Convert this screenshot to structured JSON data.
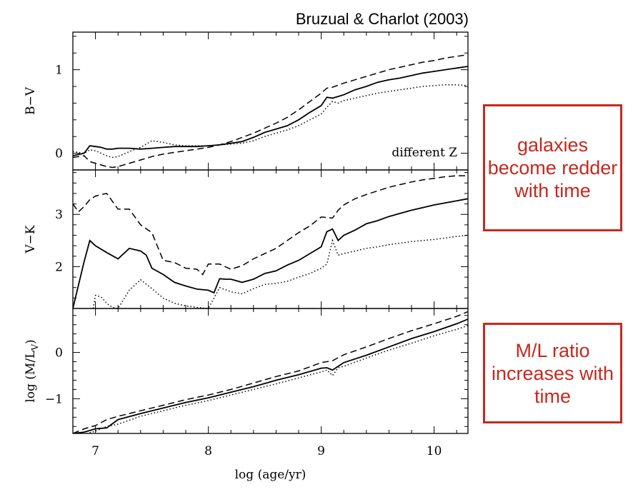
{
  "figure": {
    "title": "Bruzual & Charlot (2003)",
    "xlabel": "log (age/yr)",
    "panel_annotation": "different Z",
    "colors": {
      "lines": "#000000",
      "note_border": "#c8281e",
      "note_text": "#c8281e"
    }
  },
  "notes": [
    {
      "text": "galaxies become redder with time"
    },
    {
      "text": "M/L ratio increases with time"
    }
  ],
  "chart_data": [
    {
      "type": "line",
      "ylabel": "B−V",
      "xlim": [
        6.8,
        10.3
      ],
      "ylim": [
        -0.2,
        1.45
      ],
      "xticks": [
        "7",
        "8",
        "9",
        "10"
      ],
      "yticks": [
        "0",
        "1"
      ],
      "annotation": "different Z",
      "series": [
        {
          "style": "solid",
          "x": [
            6.8,
            6.9,
            6.95,
            7.0,
            7.05,
            7.1,
            7.15,
            7.2,
            7.3,
            7.4,
            7.5,
            7.6,
            7.7,
            7.8,
            7.9,
            8.0,
            8.1,
            8.2,
            8.3,
            8.4,
            8.5,
            8.6,
            8.7,
            8.8,
            8.9,
            9.0,
            9.05,
            9.1,
            9.15,
            9.2,
            9.3,
            9.4,
            9.5,
            9.6,
            9.7,
            9.8,
            9.9,
            10.0,
            10.1,
            10.2,
            10.3
          ],
          "y": [
            -0.03,
            0.0,
            0.09,
            0.08,
            0.07,
            0.05,
            0.05,
            0.06,
            0.06,
            0.05,
            0.06,
            0.07,
            0.08,
            0.08,
            0.08,
            0.09,
            0.1,
            0.12,
            0.14,
            0.19,
            0.25,
            0.29,
            0.33,
            0.4,
            0.49,
            0.57,
            0.67,
            0.66,
            0.68,
            0.7,
            0.76,
            0.8,
            0.85,
            0.88,
            0.9,
            0.93,
            0.96,
            0.98,
            1.0,
            1.02,
            1.04
          ]
        },
        {
          "style": "dashed",
          "x": [
            6.8,
            6.9,
            6.95,
            7.0,
            7.05,
            7.1,
            7.15,
            7.2,
            7.3,
            7.4,
            7.5,
            7.6,
            7.7,
            7.8,
            7.9,
            8.0,
            8.1,
            8.2,
            8.3,
            8.4,
            8.5,
            8.6,
            8.7,
            8.8,
            8.9,
            9.0,
            9.05,
            9.1,
            9.2,
            9.3,
            9.4,
            9.5,
            9.6,
            9.7,
            9.8,
            9.9,
            10.0,
            10.1,
            10.2,
            10.3
          ],
          "y": [
            -0.05,
            -0.03,
            -0.1,
            -0.12,
            -0.14,
            -0.16,
            -0.17,
            -0.16,
            -0.12,
            -0.08,
            -0.04,
            -0.01,
            0.01,
            0.03,
            0.05,
            0.07,
            0.1,
            0.14,
            0.19,
            0.24,
            0.3,
            0.36,
            0.43,
            0.52,
            0.62,
            0.72,
            0.78,
            0.79,
            0.84,
            0.88,
            0.92,
            0.96,
            1.0,
            1.03,
            1.06,
            1.09,
            1.11,
            1.14,
            1.16,
            1.18
          ]
        },
        {
          "style": "dotted",
          "x": [
            6.8,
            6.9,
            6.95,
            7.0,
            7.05,
            7.1,
            7.15,
            7.2,
            7.3,
            7.4,
            7.5,
            7.6,
            7.7,
            7.8,
            7.9,
            8.0,
            8.1,
            8.2,
            8.3,
            8.4,
            8.5,
            8.6,
            8.7,
            8.8,
            8.9,
            9.0,
            9.05,
            9.1,
            9.15,
            9.2,
            9.3,
            9.4,
            9.5,
            9.6,
            9.7,
            9.8,
            9.9,
            10.0,
            10.1,
            10.2,
            10.3
          ],
          "y": [
            0.02,
            0.0,
            0.04,
            0.03,
            0.0,
            -0.03,
            -0.05,
            -0.04,
            0.02,
            0.07,
            0.15,
            0.13,
            0.1,
            0.09,
            0.09,
            0.09,
            0.1,
            0.11,
            0.12,
            0.15,
            0.2,
            0.24,
            0.28,
            0.33,
            0.4,
            0.47,
            0.55,
            0.62,
            0.6,
            0.63,
            0.66,
            0.69,
            0.72,
            0.74,
            0.76,
            0.78,
            0.8,
            0.81,
            0.82,
            0.82,
            0.81
          ]
        }
      ]
    },
    {
      "type": "line",
      "ylabel": "V−K",
      "xlim": [
        6.8,
        10.3
      ],
      "ylim": [
        1.2,
        3.85
      ],
      "xticks": [
        "7",
        "8",
        "9",
        "10"
      ],
      "yticks": [
        "2",
        "3"
      ],
      "series": [
        {
          "style": "solid",
          "x": [
            6.8,
            6.9,
            6.95,
            7.0,
            7.1,
            7.2,
            7.3,
            7.4,
            7.45,
            7.5,
            7.6,
            7.7,
            7.8,
            7.9,
            8.0,
            8.05,
            8.1,
            8.15,
            8.2,
            8.3,
            8.4,
            8.5,
            8.6,
            8.7,
            8.8,
            8.9,
            9.0,
            9.05,
            9.1,
            9.15,
            9.2,
            9.3,
            9.4,
            9.5,
            9.6,
            9.7,
            9.8,
            9.9,
            10.0,
            10.1,
            10.2,
            10.3
          ],
          "y": [
            1.2,
            2.1,
            2.5,
            2.4,
            2.27,
            2.15,
            2.35,
            2.3,
            2.22,
            1.97,
            1.85,
            1.7,
            1.63,
            1.57,
            1.55,
            1.5,
            1.77,
            1.76,
            1.76,
            1.7,
            1.76,
            1.87,
            1.92,
            2.03,
            2.12,
            2.25,
            2.38,
            2.67,
            2.72,
            2.5,
            2.6,
            2.7,
            2.82,
            2.88,
            2.96,
            3.02,
            3.08,
            3.13,
            3.18,
            3.22,
            3.26,
            3.3
          ]
        },
        {
          "style": "dashed",
          "x": [
            6.8,
            6.85,
            6.9,
            6.95,
            7.0,
            7.05,
            7.1,
            7.2,
            7.3,
            7.4,
            7.5,
            7.6,
            7.7,
            7.8,
            7.9,
            7.95,
            8.0,
            8.1,
            8.2,
            8.3,
            8.4,
            8.5,
            8.6,
            8.7,
            8.8,
            8.9,
            9.0,
            9.1,
            9.15,
            9.2,
            9.3,
            9.4,
            9.5,
            9.6,
            9.7,
            9.8,
            9.9,
            10.0,
            10.1,
            10.2,
            10.3
          ],
          "y": [
            3.2,
            3.05,
            3.15,
            3.28,
            3.35,
            3.38,
            3.4,
            3.1,
            3.1,
            2.8,
            2.65,
            2.12,
            2.08,
            1.97,
            1.95,
            1.85,
            2.05,
            2.05,
            1.95,
            2.02,
            2.15,
            2.25,
            2.35,
            2.5,
            2.65,
            2.78,
            2.95,
            2.93,
            3.08,
            3.18,
            3.3,
            3.38,
            3.45,
            3.52,
            3.57,
            3.62,
            3.66,
            3.69,
            3.72,
            3.74,
            3.74
          ]
        },
        {
          "style": "dotted",
          "x": [
            6.98,
            7.0,
            7.05,
            7.1,
            7.15,
            7.2,
            7.3,
            7.4,
            7.5,
            7.6,
            7.7,
            7.8,
            7.9,
            8.0,
            8.1,
            8.2,
            8.3,
            8.4,
            8.5,
            8.6,
            8.7,
            8.8,
            8.9,
            9.0,
            9.05,
            9.1,
            9.15,
            9.2,
            9.3,
            9.4,
            9.5,
            9.6,
            9.7,
            9.8,
            9.9,
            10.0,
            10.1,
            10.2,
            10.3
          ],
          "y": [
            1.2,
            1.45,
            1.42,
            1.3,
            1.22,
            1.2,
            1.55,
            1.75,
            1.58,
            1.4,
            1.3,
            1.25,
            1.22,
            1.2,
            1.6,
            1.52,
            1.48,
            1.58,
            1.66,
            1.68,
            1.72,
            1.8,
            1.87,
            1.97,
            2.05,
            2.5,
            2.22,
            2.25,
            2.3,
            2.35,
            2.38,
            2.42,
            2.45,
            2.48,
            2.5,
            2.52,
            2.55,
            2.58,
            2.6
          ]
        }
      ]
    },
    {
      "type": "line",
      "ylabel": "log (M/L_V)",
      "xlim": [
        6.8,
        10.3
      ],
      "ylim": [
        -1.75,
        0.95
      ],
      "xticks": [
        "7",
        "8",
        "9",
        "10"
      ],
      "yticks": [
        "−1",
        "0"
      ],
      "series": [
        {
          "style": "solid",
          "x": [
            6.8,
            6.9,
            7.0,
            7.1,
            7.2,
            7.4,
            7.6,
            7.8,
            8.0,
            8.2,
            8.4,
            8.6,
            8.8,
            9.0,
            9.05,
            9.1,
            9.2,
            9.4,
            9.6,
            9.8,
            10.0,
            10.2,
            10.3
          ],
          "y": [
            -1.75,
            -1.72,
            -1.65,
            -1.63,
            -1.45,
            -1.32,
            -1.2,
            -1.08,
            -0.98,
            -0.86,
            -0.74,
            -0.6,
            -0.48,
            -0.34,
            -0.33,
            -0.38,
            -0.22,
            -0.06,
            0.12,
            0.3,
            0.45,
            0.62,
            0.72
          ]
        },
        {
          "style": "dashed",
          "x": [
            6.8,
            6.9,
            7.0,
            7.1,
            7.2,
            7.4,
            7.6,
            7.8,
            8.0,
            8.2,
            8.4,
            8.6,
            8.8,
            9.0,
            9.1,
            9.2,
            9.4,
            9.6,
            9.8,
            10.0,
            10.2,
            10.3
          ],
          "y": [
            -1.75,
            -1.65,
            -1.58,
            -1.45,
            -1.38,
            -1.26,
            -1.14,
            -1.02,
            -0.92,
            -0.8,
            -0.66,
            -0.52,
            -0.4,
            -0.22,
            -0.18,
            -0.05,
            0.12,
            0.3,
            0.47,
            0.62,
            0.78,
            0.88
          ]
        },
        {
          "style": "dotted",
          "x": [
            6.92,
            7.0,
            7.1,
            7.2,
            7.4,
            7.6,
            7.8,
            8.0,
            8.2,
            8.4,
            8.6,
            8.8,
            9.0,
            9.05,
            9.1,
            9.15,
            9.2,
            9.4,
            9.6,
            9.8,
            10.0,
            10.2,
            10.3
          ],
          "y": [
            -1.75,
            -1.7,
            -1.6,
            -1.55,
            -1.38,
            -1.26,
            -1.14,
            -1.04,
            -0.92,
            -0.8,
            -0.68,
            -0.55,
            -0.42,
            -0.38,
            -0.5,
            -0.33,
            -0.3,
            -0.12,
            0.05,
            0.2,
            0.36,
            0.5,
            0.58
          ]
        }
      ]
    }
  ]
}
